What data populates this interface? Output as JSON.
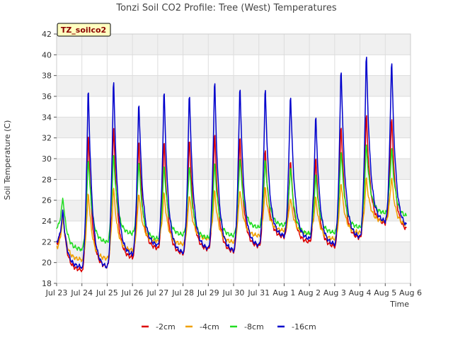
{
  "chart_data": {
    "type": "line",
    "title": "Tonzi Soil CO2 Profile: Tree (West) Temperatures",
    "xlabel": "Time",
    "ylabel": "Soil Temperature (C)",
    "badge": "TZ_soilco2",
    "x_ticks": [
      "Jul 23",
      "Jul 24",
      "Jul 25",
      "Jul 26",
      "Jul 27",
      "Jul 28",
      "Jul 29",
      "Jul 30",
      "Jul 31",
      "Aug 1",
      "Aug 2",
      "Aug 3",
      "Aug 4",
      "Aug 5",
      "Aug 6"
    ],
    "y_ticks": [
      "18",
      "20",
      "22",
      "24",
      "26",
      "28",
      "30",
      "32",
      "34",
      "36",
      "38",
      "40",
      "42"
    ],
    "ylim": [
      18,
      42
    ],
    "xlim": [
      0,
      14
    ],
    "grid": true,
    "legend_position": "bottom",
    "series": [
      {
        "name": "-2cm",
        "color": "#dd0000",
        "daily_min": [
          21.9,
          19.3,
          19.6,
          20.5,
          21.4,
          20.9,
          21.3,
          21.1,
          21.6,
          22.5,
          22.0,
          21.6,
          22.4,
          23.8,
          23.1
        ],
        "daily_max": [
          null,
          33.0,
          33.8,
          32.4,
          32.1,
          32.5,
          32.9,
          32.8,
          31.2,
          30.3,
          30.4,
          33.8,
          34.7,
          34.5,
          null
        ]
      },
      {
        "name": "-4cm",
        "color": "#f0a000",
        "daily_min": [
          21.5,
          20.3,
          20.4,
          21.2,
          22.1,
          21.8,
          22.3,
          22.0,
          22.6,
          23.1,
          22.8,
          22.3,
          22.9,
          24.0,
          23.6
        ],
        "daily_max": [
          null,
          27.1,
          27.5,
          27.0,
          26.9,
          26.8,
          27.1,
          27.3,
          27.4,
          26.4,
          26.4,
          28.0,
          28.3,
          28.4,
          null
        ]
      },
      {
        "name": "-8cm",
        "color": "#22dd22",
        "daily_min": [
          23.4,
          21.3,
          22.0,
          22.8,
          22.3,
          22.7,
          22.4,
          22.6,
          23.4,
          23.6,
          22.8,
          22.9,
          23.4,
          24.8,
          24.4
        ],
        "daily_max": [
          null,
          30.5,
          30.8,
          30.1,
          29.6,
          29.7,
          29.9,
          30.5,
          30.2,
          29.5,
          28.7,
          31.2,
          31.7,
          31.3,
          null
        ]
      },
      {
        "name": "-16cm",
        "color": "#0000cc",
        "daily_min": [
          22.1,
          19.6,
          19.6,
          20.8,
          21.7,
          21.0,
          21.4,
          21.2,
          21.7,
          22.6,
          22.3,
          21.8,
          22.5,
          24.0,
          23.4
        ],
        "daily_max": [
          null,
          37.6,
          38.5,
          36.2,
          37.2,
          37.1,
          38.2,
          37.8,
          37.4,
          36.9,
          34.6,
          39.5,
          40.7,
          40.2,
          null
        ]
      }
    ]
  }
}
